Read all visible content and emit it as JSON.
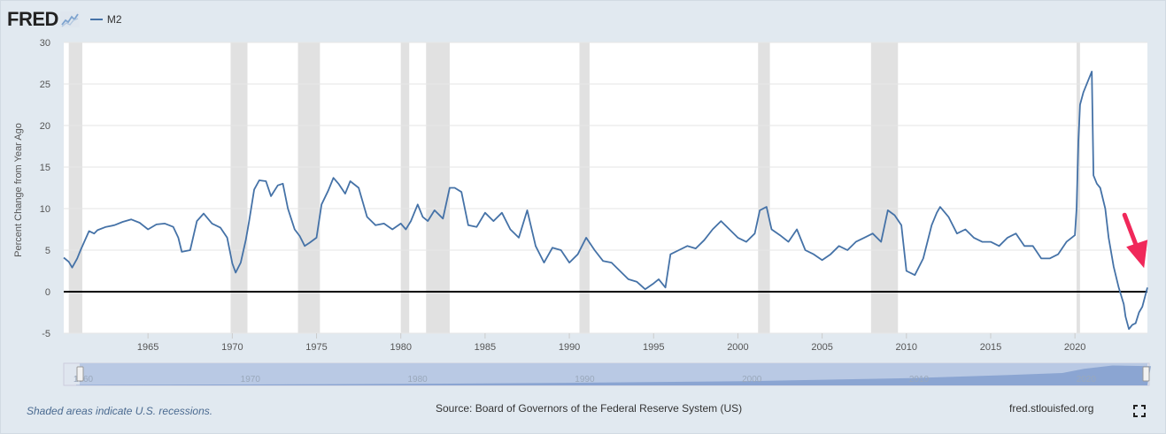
{
  "header": {
    "logo": "FRED",
    "legend_label": "M2"
  },
  "footer": {
    "recession_note": "Shaded areas indicate U.S. recessions.",
    "source": "Source: Board of Governors of the Federal Reserve System (US)",
    "url": "fred.stlouisfed.org"
  },
  "colors": {
    "series": "#4572a7",
    "recession": "#e1e1e1",
    "background": "#e1e9f0",
    "arrow": "#f0285a"
  },
  "chart_data": {
    "type": "line",
    "title": "",
    "xlabel": "",
    "ylabel": "Percent Change from Year Ago",
    "xlim": [
      1960,
      2024.3
    ],
    "ylim": [
      -5,
      30
    ],
    "yticks": [
      30,
      25,
      20,
      15,
      10,
      5,
      0,
      -5
    ],
    "xticks": [
      1965,
      1970,
      1975,
      1980,
      1985,
      1990,
      1995,
      2000,
      2005,
      2010,
      2015,
      2020
    ],
    "navigator_ticks": [
      1960,
      1970,
      1980,
      1990,
      2000,
      2010,
      2020
    ],
    "zero_line": 0,
    "recessions": [
      [
        1960.3,
        1961.1
      ],
      [
        1969.9,
        1970.9
      ],
      [
        1973.9,
        1975.2
      ],
      [
        1980.0,
        1980.5
      ],
      [
        1981.5,
        1982.9
      ],
      [
        1990.6,
        1991.2
      ],
      [
        2001.2,
        2001.9
      ],
      [
        2007.9,
        2009.5
      ],
      [
        2020.1,
        2020.3
      ]
    ],
    "series": [
      {
        "name": "M2",
        "x": [
          1960.0,
          1960.3,
          1960.5,
          1960.8,
          1961.0,
          1961.5,
          1961.8,
          1962.0,
          1962.5,
          1963.0,
          1963.5,
          1964.0,
          1964.5,
          1965.0,
          1965.5,
          1966.0,
          1966.5,
          1966.8,
          1967.0,
          1967.5,
          1967.9,
          1968.3,
          1968.8,
          1969.3,
          1969.7,
          1970.0,
          1970.2,
          1970.5,
          1970.8,
          1971.0,
          1971.3,
          1971.6,
          1972.0,
          1972.3,
          1972.7,
          1973.0,
          1973.3,
          1973.7,
          1974.0,
          1974.3,
          1974.6,
          1975.0,
          1975.3,
          1975.7,
          1976.0,
          1976.3,
          1976.7,
          1977.0,
          1977.5,
          1978.0,
          1978.5,
          1979.0,
          1979.5,
          1980.0,
          1980.3,
          1980.6,
          1981.0,
          1981.3,
          1981.6,
          1982.0,
          1982.5,
          1982.9,
          1983.2,
          1983.6,
          1984.0,
          1984.5,
          1985.0,
          1985.5,
          1986.0,
          1986.5,
          1987.0,
          1987.5,
          1988.0,
          1988.5,
          1989.0,
          1989.5,
          1990.0,
          1990.5,
          1991.0,
          1991.5,
          1992.0,
          1992.5,
          1993.0,
          1993.5,
          1994.0,
          1994.5,
          1995.0,
          1995.3,
          1995.7,
          1996.0,
          1996.5,
          1997.0,
          1997.5,
          1998.0,
          1998.5,
          1999.0,
          1999.5,
          2000.0,
          2000.5,
          2001.0,
          2001.3,
          2001.7,
          2002.0,
          2002.5,
          2003.0,
          2003.5,
          2004.0,
          2004.5,
          2005.0,
          2005.5,
          2006.0,
          2006.5,
          2007.0,
          2007.5,
          2008.0,
          2008.5,
          2008.9,
          2009.3,
          2009.7,
          2010.0,
          2010.5,
          2011.0,
          2011.5,
          2011.8,
          2012.0,
          2012.5,
          2013.0,
          2013.5,
          2014.0,
          2014.5,
          2015.0,
          2015.5,
          2016.0,
          2016.5,
          2017.0,
          2017.5,
          2018.0,
          2018.5,
          2019.0,
          2019.5,
          2020.0,
          2020.1,
          2020.2,
          2020.3,
          2020.5,
          2020.8,
          2021.0,
          2021.1,
          2021.3,
          2021.5,
          2021.8,
          2022.0,
          2022.3,
          2022.6,
          2022.9,
          2023.0,
          2023.2,
          2023.4,
          2023.6,
          2023.8,
          2024.0,
          2024.3
        ],
        "values": [
          4.1,
          3.6,
          2.9,
          4.0,
          5.0,
          7.3,
          7.0,
          7.4,
          7.8,
          8.0,
          8.4,
          8.7,
          8.3,
          7.5,
          8.1,
          8.2,
          7.8,
          6.5,
          4.8,
          5.0,
          8.5,
          9.4,
          8.2,
          7.7,
          6.5,
          3.4,
          2.3,
          3.5,
          6.2,
          8.5,
          12.3,
          13.4,
          13.3,
          11.5,
          12.8,
          13.0,
          10.0,
          7.5,
          6.7,
          5.5,
          5.9,
          6.5,
          10.5,
          12.2,
          13.7,
          13.0,
          11.8,
          13.3,
          12.5,
          9.0,
          8.0,
          8.2,
          7.5,
          8.2,
          7.5,
          8.5,
          10.5,
          9.0,
          8.5,
          9.8,
          8.8,
          12.5,
          12.5,
          12.0,
          8.0,
          7.8,
          9.5,
          8.5,
          9.5,
          7.5,
          6.5,
          9.8,
          5.5,
          3.5,
          5.3,
          5.0,
          3.5,
          4.5,
          6.5,
          5.0,
          3.7,
          3.5,
          2.5,
          1.5,
          1.2,
          0.3,
          1.0,
          1.5,
          0.5,
          4.5,
          5.0,
          5.5,
          5.2,
          6.2,
          7.5,
          8.5,
          7.5,
          6.5,
          6.0,
          7.0,
          9.8,
          10.2,
          7.5,
          6.8,
          6.0,
          7.5,
          5.0,
          4.5,
          3.8,
          4.5,
          5.5,
          5.0,
          6.0,
          6.5,
          7.0,
          6.0,
          9.8,
          9.2,
          8.0,
          2.5,
          2.0,
          4.0,
          8.0,
          9.5,
          10.2,
          9.0,
          7.0,
          7.5,
          6.5,
          6.0,
          6.0,
          5.5,
          6.5,
          7.0,
          5.5,
          5.5,
          4.0,
          4.0,
          4.5,
          6.0,
          6.8,
          10.0,
          18.0,
          22.5,
          24.0,
          25.5,
          26.5,
          14.0,
          13.0,
          12.5,
          10.0,
          6.5,
          3.0,
          0.5,
          -1.5,
          -3.0,
          -4.5,
          -4.0,
          -3.8,
          -2.5,
          -1.8,
          0.5
        ]
      }
    ],
    "annotation": "arrow"
  }
}
